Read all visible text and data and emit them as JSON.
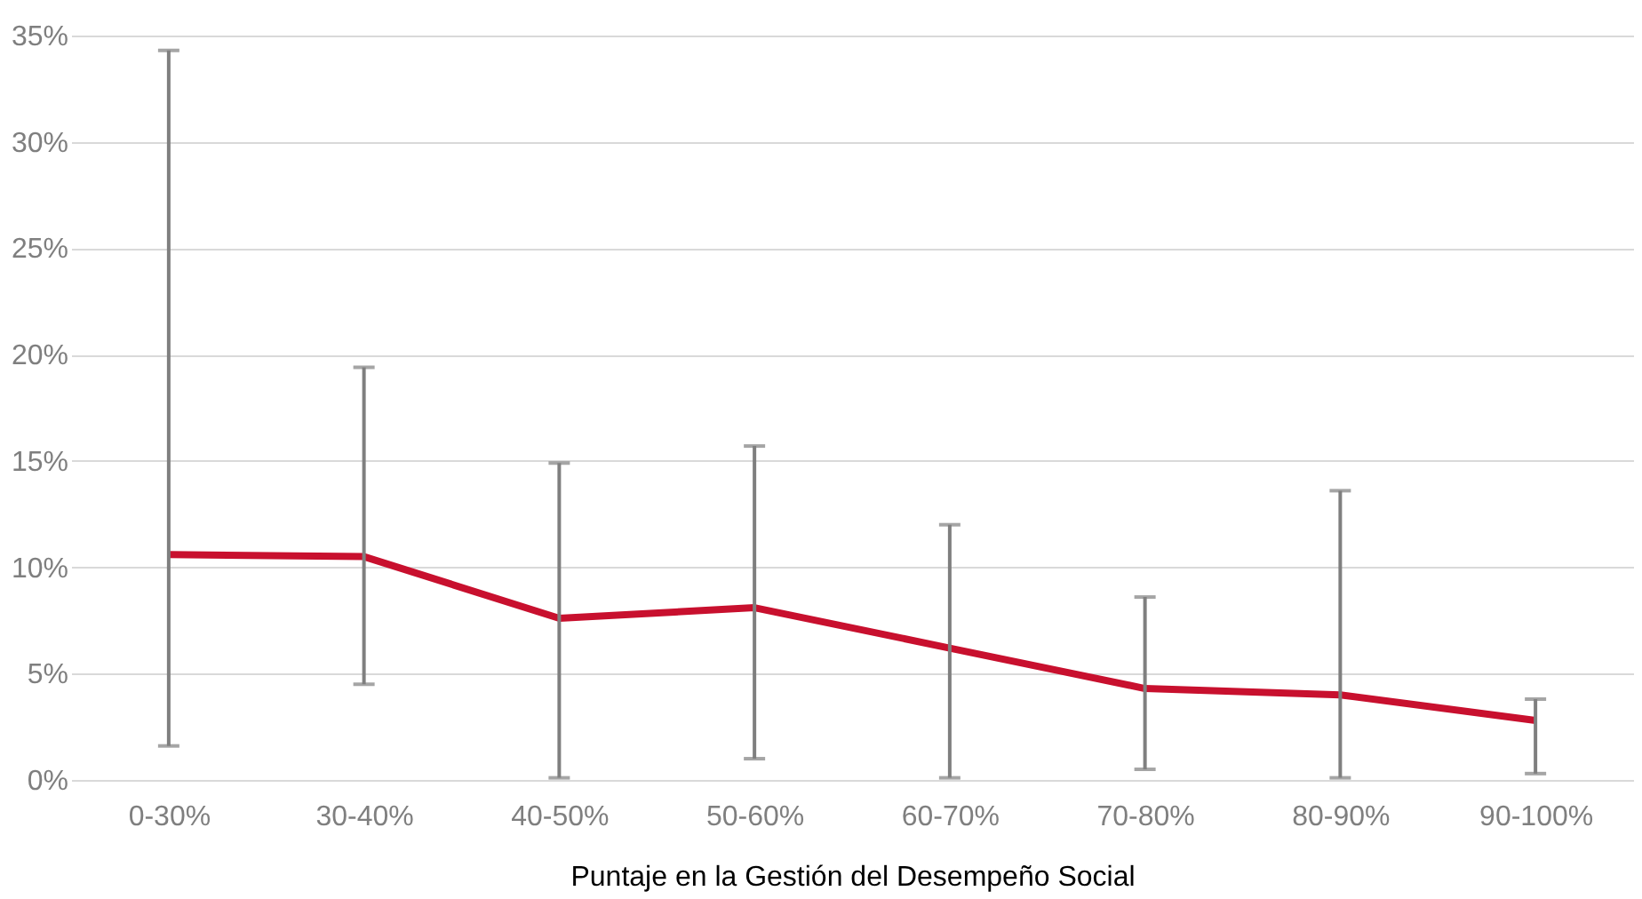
{
  "chart_data": {
    "type": "line",
    "xlabel": "Puntaje en la Gestión del Desempeño Social",
    "categories": [
      "0-30%",
      "30-40%",
      "40-50%",
      "50-60%",
      "60-70%",
      "70-80%",
      "80-90%",
      "90-100%"
    ],
    "series": [
      {
        "color": "#c8102e",
        "values": [
          10.6,
          10.5,
          7.6,
          8.1,
          6.2,
          4.3,
          4.0,
          2.8
        ],
        "errors": [
          [
            1.6,
            34.3
          ],
          [
            4.5,
            19.4
          ],
          [
            0.1,
            14.9
          ],
          [
            1.0,
            15.7
          ],
          [
            0.1,
            12.0
          ],
          [
            0.5,
            8.6
          ],
          [
            0.1,
            13.6
          ],
          [
            0.3,
            3.8
          ]
        ]
      }
    ],
    "ylim": [
      0,
      35
    ],
    "yticks": [
      {
        "value": 0,
        "label": "0%"
      },
      {
        "value": 5,
        "label": "5%"
      },
      {
        "value": 10,
        "label": "10%"
      },
      {
        "value": 15,
        "label": "15%"
      },
      {
        "value": 20,
        "label": "20%"
      },
      {
        "value": 25,
        "label": "25%"
      },
      {
        "value": 30,
        "label": "30%"
      },
      {
        "value": 35,
        "label": "35%"
      }
    ],
    "grid": "y",
    "marker": "none",
    "line_style": "solid"
  }
}
